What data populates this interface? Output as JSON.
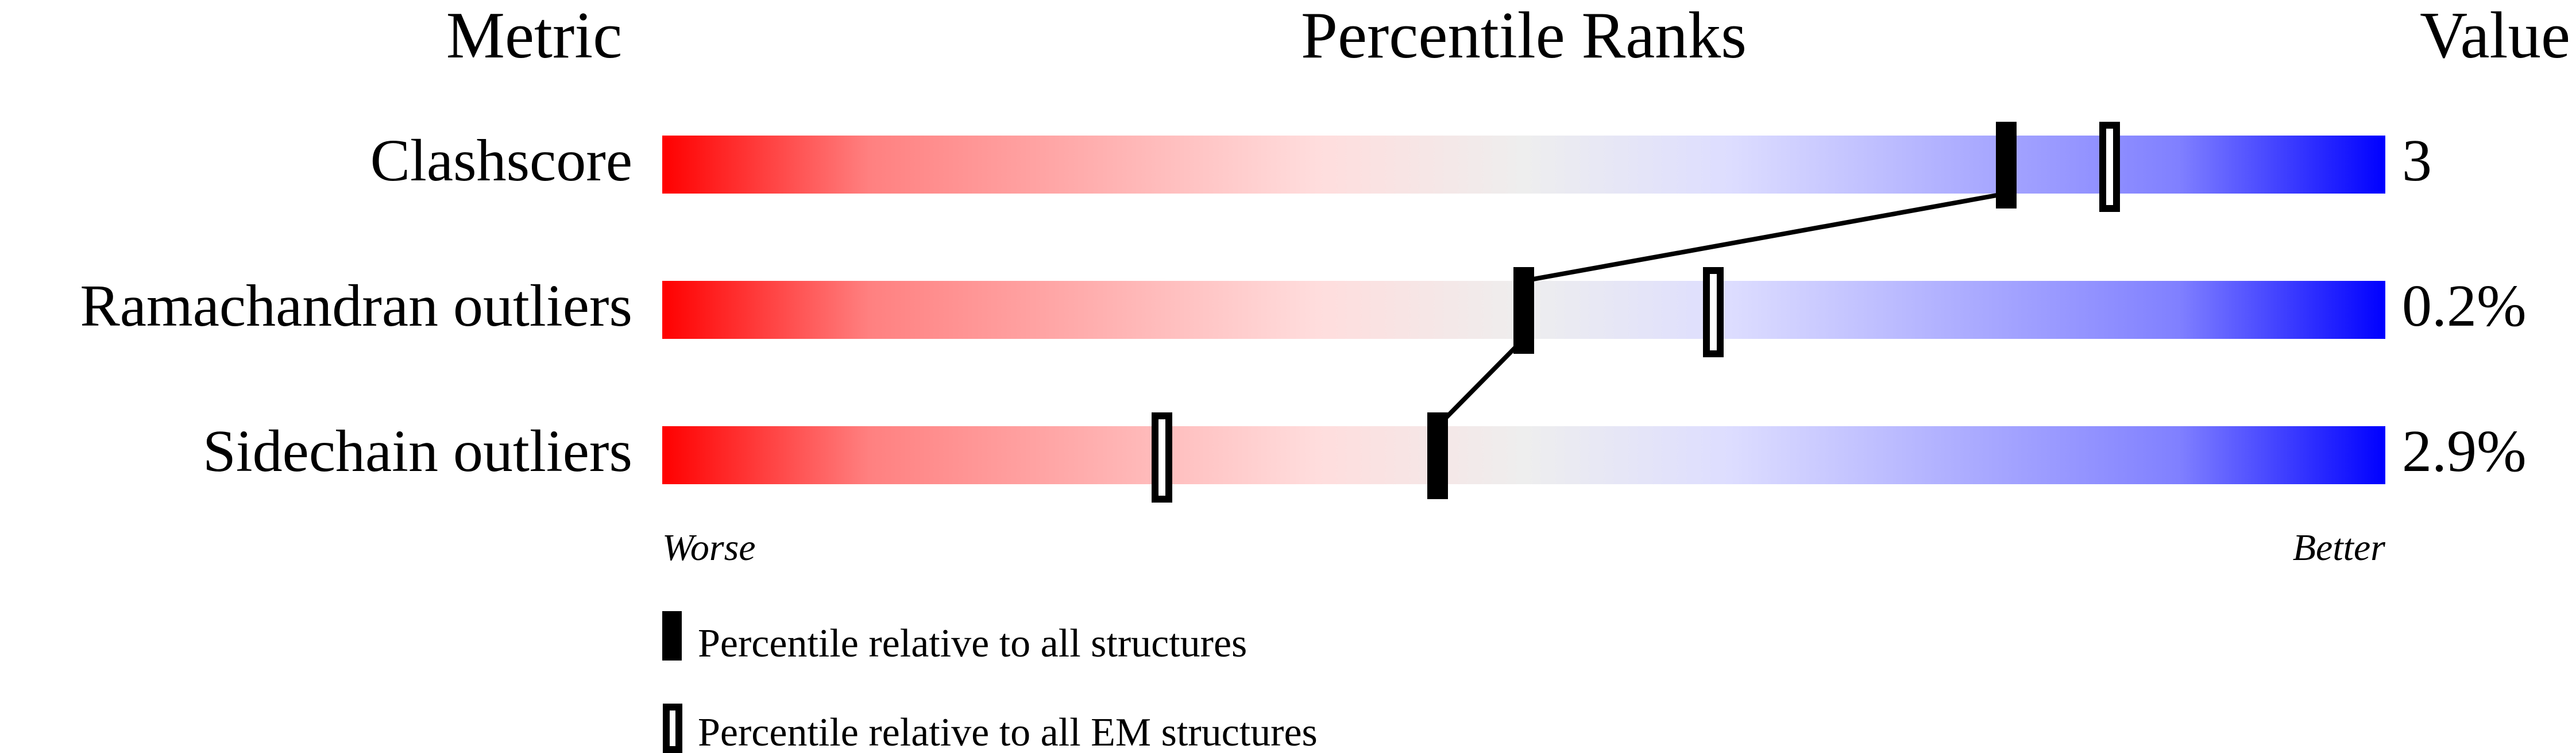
{
  "chart_data": {
    "type": "percentile-ranks",
    "headers": {
      "metric": "Metric",
      "ranks": "Percentile Ranks",
      "value": "Value"
    },
    "xlim": [
      0,
      100
    ],
    "axis_labels": {
      "worse": "Worse",
      "better": "Better"
    },
    "gradient_colors": [
      "#ff0000",
      "#ff8080",
      "#ffdddd",
      "#eeeeee",
      "#ddddff",
      "#8080ff",
      "#0000ff"
    ],
    "rows": [
      {
        "metric": "Clashscore",
        "value": "3",
        "percentile_all": 78,
        "percentile_em": 84
      },
      {
        "metric": "Ramachandran outliers",
        "value": "0.2%",
        "percentile_all": 50,
        "percentile_em": 61
      },
      {
        "metric": "Sidechain outliers",
        "value": "2.9%",
        "percentile_all": 45,
        "percentile_em": 29
      }
    ],
    "legend": [
      {
        "style": "filled",
        "label": "Percentile relative to all structures"
      },
      {
        "style": "open",
        "label": "Percentile relative to all EM structures"
      }
    ]
  }
}
